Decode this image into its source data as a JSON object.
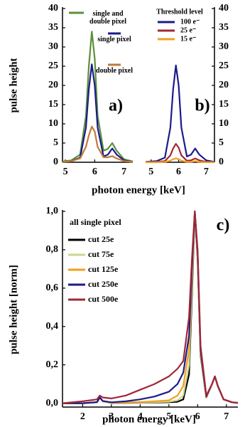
{
  "chart_data": [
    {
      "type": "line",
      "panel_label": "a)",
      "ylabel": "pulse height",
      "xlabel": "photon energy [keV]",
      "xlim": [
        4.9,
        7.3
      ],
      "xticks": [
        5,
        6,
        7
      ],
      "ylim": [
        0,
        40
      ],
      "yticks": [
        0,
        5,
        10,
        15,
        20,
        25,
        30,
        35,
        40
      ],
      "yaxis_position": "left",
      "x": [
        4.9,
        5.2,
        5.5,
        5.7,
        5.8,
        5.9,
        6.0,
        6.1,
        6.3,
        6.45,
        6.6,
        6.75,
        7.0,
        7.3
      ],
      "series": [
        {
          "name": "single and double pixel",
          "color": "#5d8f3a",
          "values": [
            0.2,
            0.5,
            2,
            12,
            25,
            34,
            27,
            12,
            3,
            3.5,
            5,
            3,
            0.8,
            0.2
          ]
        },
        {
          "name": "single pixel",
          "color": "#1b1b8a",
          "values": [
            0.1,
            0.3,
            1.2,
            9,
            19,
            25.5,
            20,
            9,
            1.5,
            2,
            3.6,
            2,
            0.5,
            0.1
          ]
        },
        {
          "name": "double pixel",
          "color": "#c07a3a",
          "values": [
            0.1,
            0.3,
            1,
            4,
            7,
            9.3,
            8,
            4,
            1.3,
            1.3,
            1.6,
            1,
            0.3,
            0.1
          ]
        }
      ]
    },
    {
      "type": "line",
      "panel_label": "b)",
      "legend_title": "Threshold level",
      "xlim": [
        4.8,
        7.3
      ],
      "xticks": [
        5,
        6,
        7
      ],
      "ylim": [
        0,
        40
      ],
      "yticks": [
        0,
        5,
        10,
        15,
        20,
        25,
        30,
        35,
        40
      ],
      "yaxis_position": "right",
      "x": [
        4.8,
        5.2,
        5.5,
        5.7,
        5.8,
        5.9,
        6.0,
        6.1,
        6.3,
        6.45,
        6.6,
        6.75,
        7.0,
        7.3
      ],
      "series": [
        {
          "name": "100 e⁻",
          "color": "#1b1b8a",
          "values": [
            0.1,
            0.3,
            1.2,
            9,
            19,
            25.2,
            20,
            9,
            1.5,
            2,
            3.6,
            2,
            0.5,
            0.1
          ]
        },
        {
          "name": "25 e⁻",
          "color": "#a02838",
          "values": [
            0,
            0.1,
            0.3,
            1.8,
            3.6,
            4.8,
            3.8,
            1.8,
            0.4,
            0.5,
            1,
            0.5,
            0.1,
            0
          ]
        },
        {
          "name": "15 e⁻",
          "color": "#f0a01e",
          "values": [
            0,
            0,
            0.1,
            0.4,
            0.8,
            1,
            0.8,
            0.4,
            0.1,
            0.1,
            0.3,
            0.1,
            0,
            0
          ]
        }
      ]
    },
    {
      "type": "line",
      "panel_label": "c)",
      "ylabel": "pulse height [norm]",
      "xlabel": "photon energy [keV]",
      "legend_title": "all single pixel",
      "xlim": [
        1.3,
        7.4
      ],
      "xticks": [
        2,
        3,
        4,
        5,
        6,
        7
      ],
      "ylim": [
        -0.02,
        1.0
      ],
      "yaxis_position": "left",
      "yticks": [
        {
          "value": 0,
          "label": "0,0"
        },
        {
          "value": 0.2,
          "label": "0,2"
        },
        {
          "value": 0.4,
          "label": "0,4"
        },
        {
          "value": 0.6,
          "label": "0,6"
        },
        {
          "value": 0.8,
          "label": "0,8"
        },
        {
          "value": 1.0,
          "label": "1,0"
        }
      ],
      "x": [
        1.3,
        2.0,
        2.5,
        2.6,
        2.7,
        3.0,
        3.5,
        4.0,
        4.5,
        5.0,
        5.3,
        5.5,
        5.7,
        5.8,
        5.9,
        6.0,
        6.1,
        6.3,
        6.5,
        6.6,
        6.7,
        6.9,
        7.2,
        7.4
      ],
      "series": [
        {
          "name": "cut 25e",
          "color": "#000000",
          "values": [
            0,
            0,
            0.005,
            0.03,
            0.01,
            0.002,
            0.002,
            0.003,
            0.004,
            0.005,
            0.008,
            0.02,
            0.15,
            0.55,
            1.0,
            0.75,
            0.25,
            0.03,
            0.1,
            0.14,
            0.09,
            0.02,
            0.005,
            0.002
          ]
        },
        {
          "name": "cut 75e",
          "color": "#c9d78f",
          "values": [
            0,
            0,
            0.005,
            0.03,
            0.01,
            0.003,
            0.003,
            0.004,
            0.006,
            0.008,
            0.015,
            0.04,
            0.2,
            0.6,
            1.0,
            0.76,
            0.26,
            0.03,
            0.1,
            0.14,
            0.09,
            0.02,
            0.005,
            0.002
          ]
        },
        {
          "name": "cut 125e",
          "color": "#f0a01e",
          "values": [
            0,
            0,
            0.005,
            0.03,
            0.01,
            0.003,
            0.004,
            0.006,
            0.01,
            0.015,
            0.04,
            0.09,
            0.28,
            0.65,
            1.0,
            0.77,
            0.27,
            0.03,
            0.1,
            0.14,
            0.09,
            0.02,
            0.005,
            0.002
          ]
        },
        {
          "name": "cut 250e",
          "color": "#1b1b8a",
          "values": [
            0,
            0,
            0.006,
            0.03,
            0.012,
            0.005,
            0.01,
            0.02,
            0.035,
            0.06,
            0.1,
            0.16,
            0.35,
            0.7,
            1.0,
            0.78,
            0.28,
            0.035,
            0.1,
            0.14,
            0.09,
            0.02,
            0.005,
            0.002
          ]
        },
        {
          "name": "cut 500e",
          "color": "#a02838",
          "values": [
            0,
            0.01,
            0.02,
            0.04,
            0.03,
            0.025,
            0.04,
            0.07,
            0.1,
            0.14,
            0.18,
            0.22,
            0.45,
            0.75,
            1.0,
            0.8,
            0.3,
            0.04,
            0.1,
            0.14,
            0.09,
            0.02,
            0.005,
            0.002
          ]
        }
      ]
    }
  ]
}
